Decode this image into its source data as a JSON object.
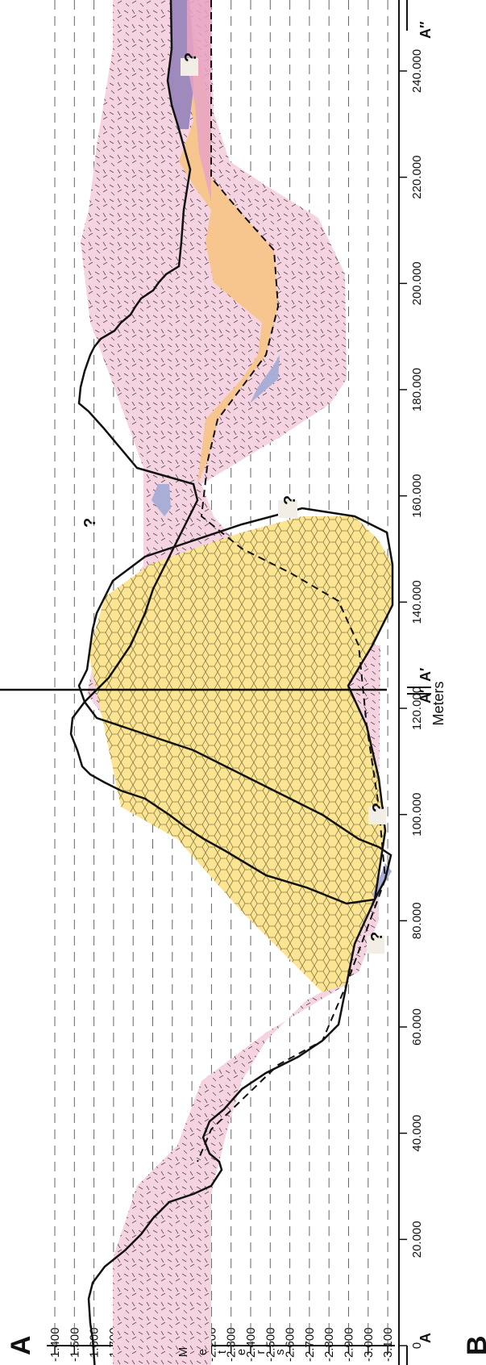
{
  "panel_labels": [
    "A",
    "B"
  ],
  "section_labels": {
    "left_start": "A",
    "left_end": "A′",
    "right_start": "A′",
    "right_end": "A″"
  },
  "axes": {
    "x_label": "Meters",
    "y_label": "Meters",
    "x_ticks": [
      "0",
      "20.000",
      "40.000",
      "60.000",
      "80.000",
      "100.000",
      "120.000",
      "140.000",
      "160.000",
      "180.000",
      "200.000",
      "220.000",
      "240.000"
    ],
    "y_ticks": [
      "-1.400",
      "-1.500",
      "-1.600",
      "-1.700",
      "-1.800",
      "-1.900",
      "-2.000",
      "-2.100",
      "-2.200",
      "-2.300",
      "-2.400",
      "-2.500",
      "-2.600",
      "-2.700",
      "-2.800",
      "-2.900",
      "-3.000",
      "-3.100"
    ]
  },
  "uncertainty_marks": [
    "?",
    "?",
    "?",
    "?",
    "?"
  ],
  "colors": {
    "volcanic_pink": "#f6d3e1",
    "sediment_yellow": "#fbe592",
    "sediment_orange": "#f6c68e",
    "thin_blue": "#a9aed6",
    "purple": "#9e8abd",
    "pink_layer": "#e7a3c4"
  }
}
